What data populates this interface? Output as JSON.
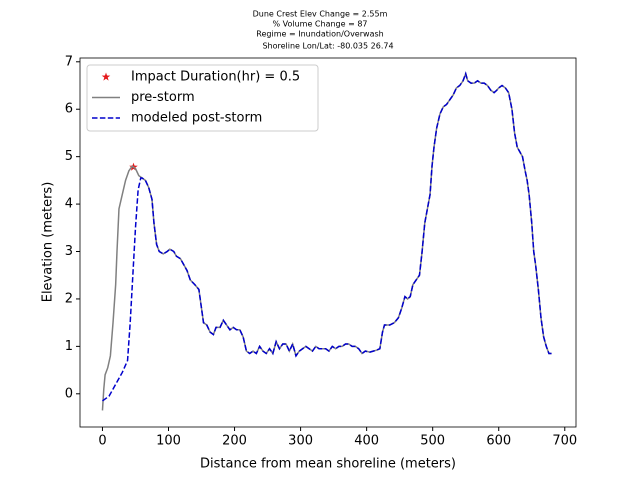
{
  "chart_data": {
    "type": "line",
    "title": [
      "Dune Crest Elev Change = 2.55m",
      "% Volume Change = 87",
      "Regime = Inundation/Overwash",
      "Shoreline Lon/Lat: -80.035 26.74"
    ],
    "xlabel": "Distance from mean shoreline (meters)",
    "ylabel": "Elevation (meters)",
    "xlim": [
      -34,
      717
    ],
    "ylim": [
      -0.7,
      7.08
    ],
    "xticks": [
      0,
      100,
      200,
      300,
      400,
      500,
      600,
      700
    ],
    "yticks": [
      0,
      1,
      2,
      3,
      4,
      5,
      6,
      7
    ],
    "legend": "upper left",
    "series": [
      {
        "name": "Impact Duration(hr) = 0.5",
        "color": "#e41a1c",
        "marker": "star",
        "linestyle": "none",
        "x": [
          47
        ],
        "values": [
          4.78
        ]
      },
      {
        "name": "pre-storm",
        "color": "#808080",
        "linestyle": "solid",
        "x": [
          0,
          2,
          4,
          8,
          12,
          16,
          20,
          22,
          25,
          30,
          35,
          40,
          45,
          50,
          55,
          60,
          65,
          70,
          75,
          78,
          82,
          86,
          92,
          98,
          102,
          108,
          112,
          118,
          122,
          128,
          133,
          140,
          146,
          150,
          153,
          158,
          163,
          168,
          172,
          178,
          183,
          188,
          193,
          198,
          203,
          208,
          213,
          218,
          223,
          228,
          233,
          238,
          243,
          248,
          253,
          258,
          263,
          268,
          273,
          278,
          283,
          288,
          293,
          298,
          303,
          308,
          313,
          318,
          323,
          328,
          333,
          338,
          343,
          348,
          353,
          358,
          363,
          368,
          373,
          378,
          383,
          388,
          393,
          398,
          405,
          410,
          415,
          420,
          424,
          427,
          435,
          442,
          448,
          453,
          458,
          462,
          466,
          470,
          475,
          480,
          484,
          488,
          492,
          496,
          499,
          502,
          506,
          511,
          516,
          521,
          526,
          531,
          536,
          541,
          546,
          550,
          553,
          558,
          563,
          568,
          573,
          578,
          583,
          588,
          593,
          597,
          600,
          605,
          610,
          615,
          620,
          624,
          628,
          632,
          636,
          640,
          643,
          646,
          650,
          653,
          656,
          660,
          664,
          668,
          672,
          676,
          680
        ],
        "values": [
          -0.35,
          0.1,
          0.4,
          0.55,
          0.8,
          1.5,
          2.3,
          3.0,
          3.9,
          4.2,
          4.5,
          4.7,
          4.8,
          4.75,
          4.6,
          4.55,
          4.5,
          4.35,
          4.1,
          3.6,
          3.15,
          3.0,
          2.95,
          3.0,
          3.05,
          3.0,
          2.9,
          2.85,
          2.75,
          2.6,
          2.4,
          2.3,
          2.2,
          1.8,
          1.5,
          1.45,
          1.3,
          1.25,
          1.4,
          1.4,
          1.55,
          1.45,
          1.35,
          1.4,
          1.35,
          1.35,
          1.2,
          0.9,
          0.85,
          0.9,
          0.85,
          1.0,
          0.9,
          0.85,
          0.95,
          0.85,
          1.1,
          0.95,
          1.05,
          1.05,
          0.9,
          1.05,
          0.8,
          0.9,
          0.95,
          1.0,
          0.95,
          0.9,
          1.0,
          0.95,
          0.95,
          0.95,
          0.9,
          1.0,
          0.95,
          1.0,
          1.0,
          1.05,
          1.05,
          1.0,
          1.0,
          0.95,
          0.85,
          0.9,
          0.88,
          0.9,
          0.92,
          0.95,
          1.3,
          1.45,
          1.45,
          1.5,
          1.6,
          1.8,
          2.05,
          2.0,
          2.05,
          2.3,
          2.4,
          2.5,
          3.0,
          3.6,
          3.9,
          4.2,
          4.8,
          5.2,
          5.6,
          5.9,
          6.05,
          6.1,
          6.2,
          6.3,
          6.45,
          6.5,
          6.6,
          6.75,
          6.6,
          6.55,
          6.55,
          6.6,
          6.55,
          6.55,
          6.5,
          6.4,
          6.35,
          6.4,
          6.45,
          6.5,
          6.45,
          6.35,
          6.0,
          5.5,
          5.2,
          5.1,
          5.0,
          4.7,
          4.5,
          4.2,
          3.6,
          3.0,
          2.7,
          2.2,
          1.6,
          1.2,
          1.0,
          0.85,
          0.85
        ]
      },
      {
        "name": "modeled post-storm",
        "color": "#0000cc",
        "linestyle": "dashed",
        "x": [
          0,
          10,
          20,
          30,
          38,
          42,
          46,
          50,
          54,
          58,
          60,
          65,
          70,
          75,
          78,
          82,
          86,
          92,
          98,
          102,
          108,
          112,
          118,
          122,
          128,
          133,
          140,
          146,
          150,
          153,
          158,
          163,
          168,
          172,
          178,
          183,
          188,
          193,
          198,
          203,
          208,
          213,
          218,
          223,
          228,
          233,
          238,
          243,
          248,
          253,
          258,
          263,
          268,
          273,
          278,
          283,
          288,
          293,
          298,
          303,
          308,
          313,
          318,
          323,
          328,
          333,
          338,
          343,
          348,
          353,
          358,
          363,
          368,
          373,
          378,
          383,
          388,
          393,
          398,
          405,
          410,
          415,
          420,
          424,
          427,
          435,
          442,
          448,
          453,
          458,
          462,
          466,
          470,
          475,
          480,
          484,
          488,
          492,
          496,
          499,
          502,
          506,
          511,
          516,
          521,
          526,
          531,
          536,
          541,
          546,
          550,
          553,
          558,
          563,
          568,
          573,
          578,
          583,
          588,
          593,
          597,
          600,
          605,
          610,
          615,
          620,
          624,
          628,
          632,
          636,
          640,
          643,
          646,
          650,
          653,
          656,
          660,
          664,
          668,
          672,
          676,
          680
        ],
        "values": [
          -0.15,
          -0.05,
          0.2,
          0.45,
          0.7,
          1.5,
          2.5,
          3.5,
          4.3,
          4.55,
          4.55,
          4.5,
          4.35,
          4.1,
          3.6,
          3.15,
          3.0,
          2.95,
          3.0,
          3.05,
          3.0,
          2.9,
          2.85,
          2.75,
          2.6,
          2.4,
          2.3,
          2.2,
          1.8,
          1.5,
          1.45,
          1.3,
          1.25,
          1.4,
          1.4,
          1.55,
          1.45,
          1.35,
          1.4,
          1.35,
          1.35,
          1.2,
          0.9,
          0.85,
          0.9,
          0.85,
          1.0,
          0.9,
          0.85,
          0.95,
          0.85,
          1.1,
          0.95,
          1.05,
          1.05,
          0.9,
          1.05,
          0.8,
          0.9,
          0.95,
          1.0,
          0.95,
          0.9,
          1.0,
          0.95,
          0.95,
          0.95,
          0.9,
          1.0,
          0.95,
          1.0,
          1.0,
          1.05,
          1.05,
          1.0,
          1.0,
          0.95,
          0.85,
          0.9,
          0.88,
          0.9,
          0.92,
          0.95,
          1.3,
          1.45,
          1.45,
          1.5,
          1.6,
          1.8,
          2.05,
          2.0,
          2.05,
          2.3,
          2.4,
          2.5,
          3.0,
          3.6,
          3.9,
          4.2,
          4.8,
          5.2,
          5.6,
          5.9,
          6.05,
          6.1,
          6.2,
          6.3,
          6.45,
          6.5,
          6.6,
          6.75,
          6.6,
          6.55,
          6.55,
          6.6,
          6.55,
          6.55,
          6.5,
          6.4,
          6.35,
          6.4,
          6.45,
          6.5,
          6.45,
          6.35,
          6.0,
          5.5,
          5.2,
          5.1,
          5.0,
          4.7,
          4.5,
          4.2,
          3.6,
          3.0,
          2.7,
          2.2,
          1.6,
          1.2,
          1.0,
          0.85,
          0.85
        ]
      }
    ]
  }
}
